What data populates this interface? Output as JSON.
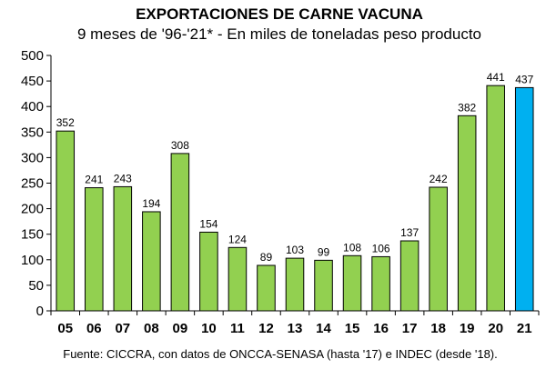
{
  "chart_data": {
    "type": "bar",
    "title": "EXPORTACIONES DE CARNE VACUNA",
    "subtitle": "9 meses de '96-'21* - En miles de toneladas peso producto",
    "categories": [
      "05",
      "06",
      "07",
      "08",
      "09",
      "10",
      "11",
      "12",
      "13",
      "14",
      "15",
      "16",
      "17",
      "18",
      "19",
      "20",
      "21"
    ],
    "values": [
      352,
      241,
      243,
      194,
      308,
      154,
      124,
      89,
      103,
      99,
      108,
      106,
      137,
      242,
      382,
      441,
      437
    ],
    "data_labels": [
      "352",
      "241",
      "243",
      "194",
      "308",
      "154",
      "124",
      "89",
      "103",
      "99",
      "108",
      "106",
      "137",
      "242",
      "382",
      "441",
      "437"
    ],
    "yticks": [
      "0",
      "50",
      "100",
      "150",
      "200",
      "250",
      "300",
      "350",
      "400",
      "450",
      "500"
    ],
    "ylim": [
      0,
      500
    ],
    "grid": false,
    "colors": {
      "bar": "#92d050",
      "highlight_bar": "#00b0f0",
      "bar_stroke": "#000000"
    },
    "highlight_index": 16,
    "source": "Fuente: CICCRA, con datos de ONCCA-SENASA (hasta '17) e INDEC (desde '18)."
  }
}
